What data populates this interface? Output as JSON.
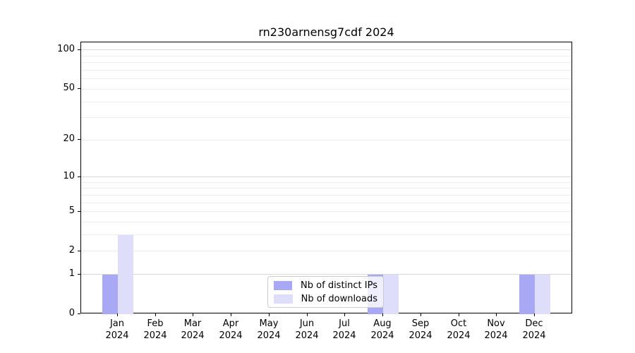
{
  "title": "rn230arnensg7cdf 2024",
  "legend": {
    "items": [
      {
        "label": "Nb of distinct IPs",
        "color": "#a8a8f4"
      },
      {
        "label": "Nb of downloads",
        "color": "#dedefb"
      }
    ]
  },
  "axes": {
    "y_ticks": [
      {
        "value": 100,
        "label": "100"
      },
      {
        "value": 50,
        "label": "50"
      },
      {
        "value": 20,
        "label": "20"
      },
      {
        "value": 10,
        "label": "10"
      },
      {
        "value": 5,
        "label": "5"
      },
      {
        "value": 2,
        "label": "2"
      },
      {
        "value": 1,
        "label": "1"
      },
      {
        "value": 0,
        "label": "0"
      }
    ],
    "months": [
      {
        "month": "Jan",
        "year": "2024"
      },
      {
        "month": "Feb",
        "year": "2024"
      },
      {
        "month": "Mar",
        "year": "2024"
      },
      {
        "month": "Apr",
        "year": "2024"
      },
      {
        "month": "May",
        "year": "2024"
      },
      {
        "month": "Jun",
        "year": "2024"
      },
      {
        "month": "Jul",
        "year": "2024"
      },
      {
        "month": "Aug",
        "year": "2024"
      },
      {
        "month": "Sep",
        "year": "2024"
      },
      {
        "month": "Oct",
        "year": "2024"
      },
      {
        "month": "Nov",
        "year": "2024"
      },
      {
        "month": "Dec",
        "year": "2024"
      }
    ]
  },
  "style": {
    "bar_dark": "#a8a8f4",
    "bar_light": "#dedefb",
    "grid_minor": "#ececec",
    "grid_major": "#d8d8d8",
    "axis_color": "#000000",
    "text_color": "#000000",
    "legend_border": "#cccccc"
  },
  "chart_data": {
    "type": "bar",
    "title": "rn230arnensg7cdf 2024",
    "categories": [
      "Jan 2024",
      "Feb 2024",
      "Mar 2024",
      "Apr 2024",
      "May 2024",
      "Jun 2024",
      "Jul 2024",
      "Aug 2024",
      "Sep 2024",
      "Oct 2024",
      "Nov 2024",
      "Dec 2024"
    ],
    "series": [
      {
        "name": "Nb of distinct IPs",
        "values": [
          1,
          0,
          0,
          0,
          0,
          0,
          0,
          1,
          0,
          0,
          0,
          1
        ]
      },
      {
        "name": "Nb of downloads",
        "values": [
          3,
          0,
          0,
          0,
          0,
          0,
          0,
          1,
          0,
          0,
          0,
          1
        ]
      }
    ],
    "xlabel": "",
    "ylabel": "",
    "yscale": "log1p",
    "ylim": [
      0,
      114
    ],
    "ytick_values": [
      0,
      1,
      2,
      5,
      10,
      20,
      50,
      100
    ],
    "grid": "horizontal log minor+major gridlines",
    "legend_position": "inside bottom-center"
  }
}
